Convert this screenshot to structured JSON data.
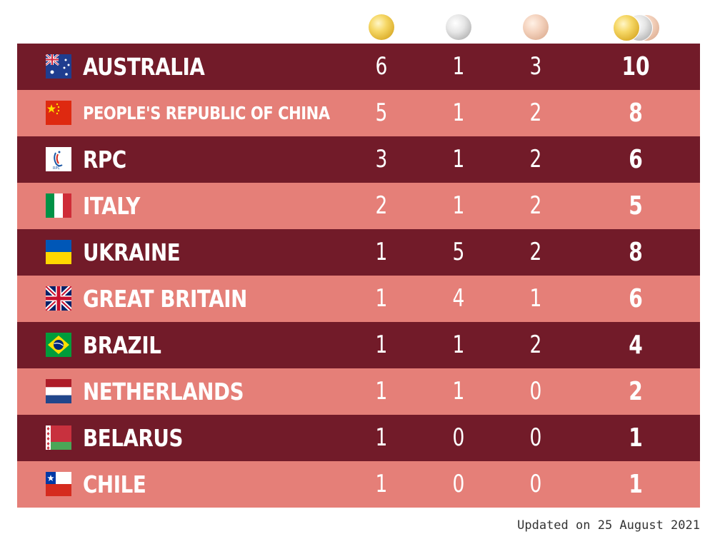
{
  "header": {
    "medals": [
      "gold-medal-icon",
      "silver-medal-icon",
      "bronze-medal-icon",
      "total-medals-icon"
    ]
  },
  "colors": {
    "row_dark": "#721b29",
    "row_light": "#e57f78",
    "text": "#ffffff",
    "gold": "#e0b535",
    "silver": "#bcbcbc",
    "bronze": "#e2b69c"
  },
  "rows": [
    {
      "country": "AUSTRALIA",
      "flag": "australia-flag-icon",
      "gold": "6",
      "silver": "1",
      "bronze": "3",
      "total": "10"
    },
    {
      "country": "PEOPLE'S REPUBLIC OF CHINA",
      "flag": "china-flag-icon",
      "gold": "5",
      "silver": "1",
      "bronze": "2",
      "total": "8"
    },
    {
      "country": "RPC",
      "flag": "rpc-flag-icon",
      "gold": "3",
      "silver": "1",
      "bronze": "2",
      "total": "6"
    },
    {
      "country": "ITALY",
      "flag": "italy-flag-icon",
      "gold": "2",
      "silver": "1",
      "bronze": "2",
      "total": "5"
    },
    {
      "country": "UKRAINE",
      "flag": "ukraine-flag-icon",
      "gold": "1",
      "silver": "5",
      "bronze": "2",
      "total": "8"
    },
    {
      "country": "GREAT BRITAIN",
      "flag": "great-britain-flag-icon",
      "gold": "1",
      "silver": "4",
      "bronze": "1",
      "total": "6"
    },
    {
      "country": "BRAZIL",
      "flag": "brazil-flag-icon",
      "gold": "1",
      "silver": "1",
      "bronze": "2",
      "total": "4"
    },
    {
      "country": "NETHERLANDS",
      "flag": "netherlands-flag-icon",
      "gold": "1",
      "silver": "1",
      "bronze": "0",
      "total": "2"
    },
    {
      "country": "BELARUS",
      "flag": "belarus-flag-icon",
      "gold": "1",
      "silver": "0",
      "bronze": "0",
      "total": "1"
    },
    {
      "country": "CHILE",
      "flag": "chile-flag-icon",
      "gold": "1",
      "silver": "0",
      "bronze": "0",
      "total": "1"
    }
  ],
  "footer": {
    "updated": "Updated on 25 August 2021"
  }
}
